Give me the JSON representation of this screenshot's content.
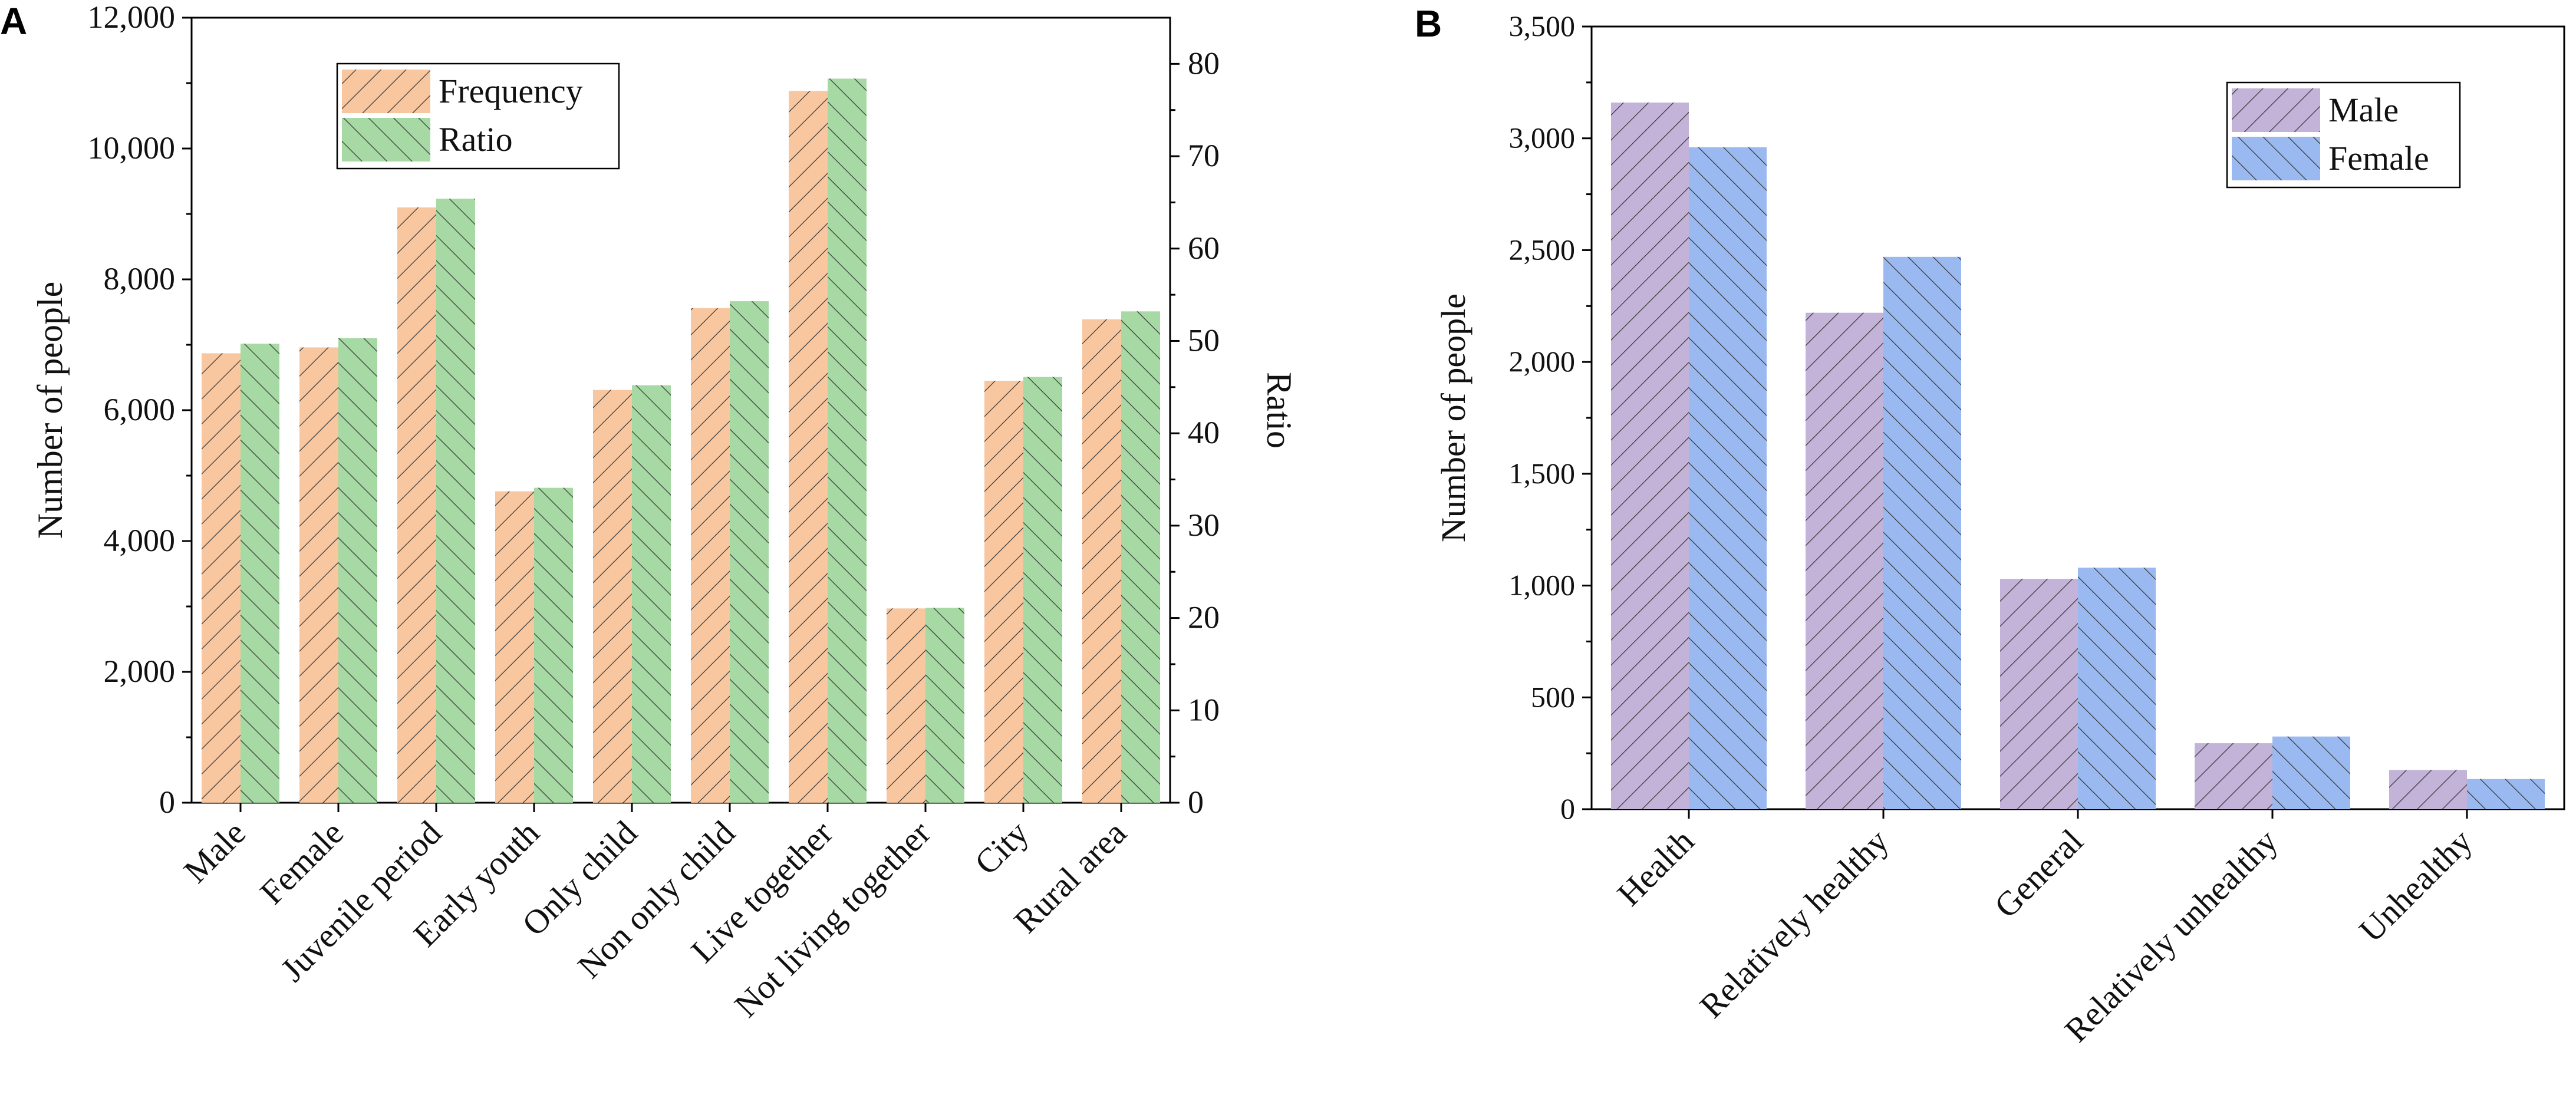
{
  "chart_data": [
    {
      "panel": "A",
      "type": "bar",
      "categories": [
        "Male",
        "Female",
        "Juvenile period",
        "Early youth",
        "Only child",
        "Non only child",
        "Live together",
        "Not living together",
        "City",
        "Rural area"
      ],
      "series": [
        {
          "name": "Frequency",
          "axis": "left",
          "values": [
            6870,
            6960,
            9100,
            4760,
            6310,
            7560,
            10880,
            2970,
            6450,
            7390
          ],
          "color": "#f8c7a0",
          "hatch": "forward"
        },
        {
          "name": "Ratio",
          "axis": "right",
          "values": [
            49.7,
            50.3,
            65.4,
            34.1,
            45.2,
            54.3,
            78.4,
            21.1,
            46.1,
            53.2
          ],
          "color": "#a6d9a3",
          "hatch": "backward"
        }
      ],
      "ylabel": "Number of people",
      "ylim": [
        0,
        12000
      ],
      "yticks": [
        0,
        2000,
        4000,
        6000,
        8000,
        10000,
        12000
      ],
      "ytick_labels": [
        "0",
        "2,000",
        "4,000",
        "6,000",
        "8,000",
        "10,000",
        "12,000"
      ],
      "y2label": "Ratio",
      "y2lim": [
        0,
        85
      ],
      "y2ticks": [
        0,
        10,
        20,
        30,
        40,
        50,
        60,
        70,
        80
      ],
      "y2tick_labels": [
        "0",
        "10",
        "20",
        "30",
        "40",
        "50",
        "60",
        "70",
        "80"
      ],
      "legend": {
        "position": "top-left",
        "entries": [
          "Frequency",
          "Ratio"
        ]
      }
    },
    {
      "panel": "B",
      "type": "bar",
      "categories": [
        "Health",
        "Relatively healthy",
        "General",
        "Relatively unhealthy",
        "Unhealthy"
      ],
      "series": [
        {
          "name": "Male",
          "values": [
            3160,
            2220,
            1030,
            295,
            175
          ],
          "color": "#c3b3d9",
          "hatch": "forward"
        },
        {
          "name": "Female",
          "values": [
            2960,
            2470,
            1080,
            325,
            135
          ],
          "color": "#9ab9f0",
          "hatch": "backward"
        }
      ],
      "ylabel": "Number of people",
      "ylim": [
        0,
        3500
      ],
      "yticks": [
        0,
        500,
        1000,
        1500,
        2000,
        2500,
        3000,
        3500
      ],
      "ytick_labels": [
        "0",
        "500",
        "1,000",
        "1,500",
        "2,000",
        "2,500",
        "3,000",
        "3,500"
      ],
      "legend": {
        "position": "top-right",
        "entries": [
          "Male",
          "Female"
        ]
      }
    }
  ]
}
